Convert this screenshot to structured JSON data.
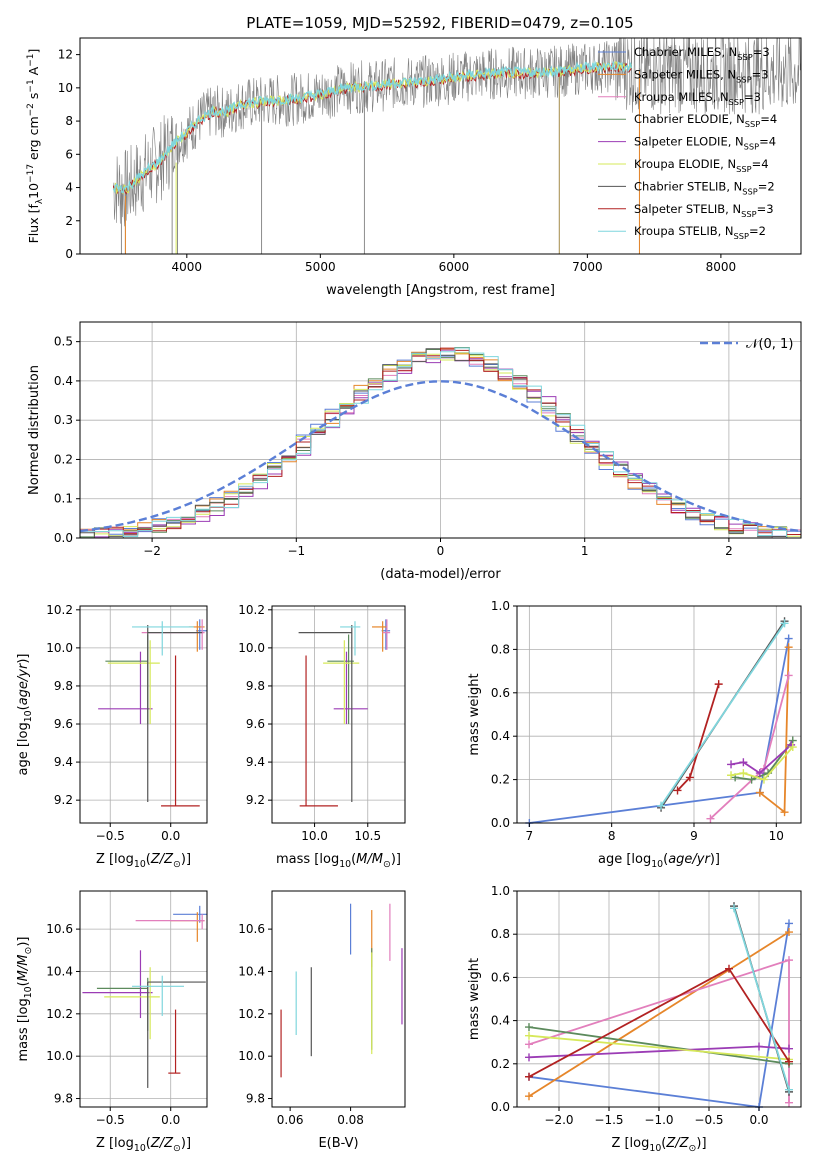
{
  "figure_title": "PLATE=1059, MJD=52592, FIBERID=0479, z=0.105",
  "colors": {
    "Chabrier MILES": "#5b7fd6",
    "Salpeter MILES": "#e6862a",
    "Kroupa MILES": "#e27fbc",
    "Chabrier ELODIE": "#5c8a5c",
    "Salpeter ELODIE": "#9b3cb5",
    "Kroupa ELODIE": "#d6e85a",
    "Chabrier STELIB": "#555555",
    "Salpeter STELIB": "#b22222",
    "Kroupa STELIB": "#7fd6dd",
    "observed": "#808080",
    "grid": "#b0b0b0"
  },
  "chart_data": [
    {
      "id": "spectrum",
      "type": "line",
      "xlabel": "wavelength [Angstrom, rest frame]",
      "ylabel": "Flux [f_λ10^-17 erg cm^-2 s^-1 A^-1]",
      "xlim": [
        3200,
        8600
      ],
      "ylim": [
        0,
        13
      ],
      "xticks": [
        4000,
        5000,
        6000,
        7000,
        8000
      ],
      "yticks": [
        0,
        2,
        4,
        6,
        8,
        10,
        12
      ],
      "grid": false,
      "legend_placement": "right",
      "legend": [
        "Chabrier MILES, N_SSP=3",
        "Salpeter MILES, N_SSP=3",
        "Kroupa MILES, N_SSP=3",
        "Chabrier ELODIE, N_SSP=4",
        "Salpeter ELODIE, N_SSP=4",
        "Kroupa ELODIE, N_SSP=4",
        "Chabrier STELIB, N_SSP=2",
        "Salpeter STELIB, N_SSP=3",
        "Kroupa STELIB, N_SSP=2"
      ],
      "model_curve": [
        [
          3450,
          4.0
        ],
        [
          3550,
          3.9
        ],
        [
          3700,
          5.0
        ],
        [
          3800,
          5.6
        ],
        [
          3900,
          6.6
        ],
        [
          4000,
          7.3
        ],
        [
          4100,
          8.1
        ],
        [
          4200,
          8.6
        ],
        [
          4300,
          8.5
        ],
        [
          4400,
          9.0
        ],
        [
          4600,
          9.2
        ],
        [
          4800,
          9.3
        ],
        [
          5000,
          9.6
        ],
        [
          5200,
          10.0
        ],
        [
          5400,
          10.1
        ],
        [
          5600,
          10.3
        ],
        [
          5800,
          10.4
        ],
        [
          6000,
          10.6
        ],
        [
          6200,
          10.8
        ],
        [
          6400,
          10.9
        ],
        [
          6600,
          10.9
        ],
        [
          6800,
          11.0
        ],
        [
          7000,
          11.2
        ],
        [
          7200,
          11.3
        ],
        [
          7330,
          11.2
        ]
      ],
      "observed_range": [
        3450,
        8600
      ]
    },
    {
      "id": "residuals",
      "type": "line",
      "xlabel": "(data-model)/error",
      "ylabel": "Normed distribution",
      "xlim": [
        -2.5,
        2.5
      ],
      "ylim": [
        0,
        0.55
      ],
      "xticks": [
        -2,
        -1,
        0,
        1,
        2
      ],
      "yticks": [
        0.0,
        0.1,
        0.2,
        0.3,
        0.4,
        0.5
      ],
      "grid": true,
      "legend_placement": "top-right",
      "legend": [
        "𝒩(0, 1)"
      ],
      "normal_curve": {
        "mean": 0,
        "sigma": 1
      },
      "histogram": {
        "bin_width": 0.1,
        "peak": 0.47,
        "center": 0.05,
        "sigma": 0.85
      }
    },
    {
      "id": "age_vs_Z",
      "type": "scatter",
      "xlabel": "Z [log10(Z/Z⊙)]",
      "ylabel": "age  [log10(age/yr)]",
      "xlim": [
        -0.75,
        0.3
      ],
      "ylim": [
        9.08,
        10.22
      ],
      "xticks": [
        -0.5,
        0.0
      ],
      "yticks": [
        9.2,
        9.4,
        9.6,
        9.8,
        10.0,
        10.2
      ],
      "grid": true,
      "points": [
        {
          "model": "Chabrier MILES",
          "x": 0.24,
          "y": 10.09,
          "xerr": [
            0.03,
            0.06
          ],
          "yerr": [
            0.1,
            0.06
          ]
        },
        {
          "model": "Salpeter MILES",
          "x": 0.22,
          "y": 10.11,
          "xerr": [
            0.07,
            0.06
          ],
          "yerr": [
            0.13,
            0.03
          ]
        },
        {
          "model": "Kroupa MILES",
          "x": 0.26,
          "y": 10.08,
          "xerr": [
            0.5,
            0.02
          ],
          "yerr": [
            0.09,
            0.07
          ]
        },
        {
          "model": "Chabrier ELODIE",
          "x": -0.19,
          "y": 9.93,
          "xerr": [
            0.35,
            0.0
          ],
          "yerr": [
            0.33,
            0.14
          ]
        },
        {
          "model": "Salpeter ELODIE",
          "x": -0.25,
          "y": 9.68,
          "xerr": [
            0.35,
            0.1
          ],
          "yerr": [
            0.08,
            0.3
          ]
        },
        {
          "model": "Kroupa ELODIE",
          "x": -0.17,
          "y": 9.92,
          "xerr": [
            0.35,
            0.08
          ],
          "yerr": [
            0.32,
            0.12
          ]
        },
        {
          "model": "Chabrier STELIB",
          "x": -0.19,
          "y": 10.08,
          "xerr": [
            0.0,
            0.45
          ],
          "yerr": [
            0.89,
            0.04
          ]
        },
        {
          "model": "Salpeter STELIB",
          "x": 0.04,
          "y": 9.17,
          "xerr": [
            0.12,
            0.2
          ],
          "yerr": [
            0.0,
            0.79
          ]
        },
        {
          "model": "Kroupa STELIB",
          "x": -0.07,
          "y": 10.11,
          "xerr": [
            0.25,
            0.26
          ],
          "yerr": [
            0.15,
            0.03
          ]
        }
      ]
    },
    {
      "id": "age_vs_mass",
      "type": "scatter",
      "xlabel": "mass [log10(M/M⊙)]",
      "ylabel": "",
      "xlim": [
        9.6,
        10.85
      ],
      "ylim": [
        9.08,
        10.22
      ],
      "xticks": [
        10.0,
        10.5
      ],
      "yticks": [
        9.2,
        9.4,
        9.6,
        9.8,
        10.0,
        10.2
      ],
      "grid": true,
      "points": [
        {
          "model": "Chabrier MILES",
          "x": 10.67,
          "y": 10.09,
          "xerr": [
            0.04,
            0.04
          ],
          "yerr": [
            0.1,
            0.06
          ]
        },
        {
          "model": "Salpeter MILES",
          "x": 10.64,
          "y": 10.11,
          "xerr": [
            0.1,
            0.04
          ],
          "yerr": [
            0.13,
            0.03
          ]
        },
        {
          "model": "Kroupa MILES",
          "x": 10.68,
          "y": 10.08,
          "xerr": [
            0.04,
            0.03
          ],
          "yerr": [
            0.09,
            0.07
          ]
        },
        {
          "model": "Chabrier ELODIE",
          "x": 10.32,
          "y": 9.93,
          "xerr": [
            0.2,
            0.05
          ],
          "yerr": [
            0.33,
            0.14
          ]
        },
        {
          "model": "Salpeter ELODIE",
          "x": 10.3,
          "y": 9.68,
          "xerr": [
            0.12,
            0.2
          ],
          "yerr": [
            0.08,
            0.3
          ]
        },
        {
          "model": "Kroupa ELODIE",
          "x": 10.28,
          "y": 9.92,
          "xerr": [
            0.2,
            0.14
          ],
          "yerr": [
            0.32,
            0.12
          ]
        },
        {
          "model": "Chabrier STELIB",
          "x": 10.35,
          "y": 10.08,
          "xerr": [
            0.5,
            0.0
          ],
          "yerr": [
            0.89,
            0.04
          ]
        },
        {
          "model": "Salpeter STELIB",
          "x": 9.92,
          "y": 9.17,
          "xerr": [
            0.06,
            0.3
          ],
          "yerr": [
            0.0,
            0.79
          ]
        },
        {
          "model": "Kroupa STELIB",
          "x": 10.38,
          "y": 10.11,
          "xerr": [
            0.14,
            0.05
          ],
          "yerr": [
            0.15,
            0.03
          ]
        }
      ]
    },
    {
      "id": "weight_vs_age",
      "type": "line",
      "xlabel": "age  [log10(age/yr)]",
      "ylabel": "mass weight",
      "xlim": [
        6.85,
        10.3
      ],
      "ylim": [
        0,
        1.0
      ],
      "xticks": [
        7,
        8,
        9,
        10
      ],
      "yticks": [
        0.0,
        0.2,
        0.4,
        0.6,
        0.8,
        1.0
      ],
      "grid": true,
      "series": [
        {
          "model": "Chabrier MILES",
          "points": [
            [
              7.0,
              0.0
            ],
            [
              9.8,
              0.14
            ],
            [
              10.15,
              0.85
            ]
          ]
        },
        {
          "model": "Salpeter MILES",
          "points": [
            [
              9.8,
              0.14
            ],
            [
              10.1,
              0.05
            ],
            [
              10.15,
              0.81
            ]
          ]
        },
        {
          "model": "Kroupa MILES",
          "points": [
            [
              9.2,
              0.02
            ],
            [
              9.85,
              0.25
            ],
            [
              10.15,
              0.68
            ]
          ]
        },
        {
          "model": "Chabrier ELODIE",
          "points": [
            [
              9.5,
              0.21
            ],
            [
              9.7,
              0.2
            ],
            [
              9.9,
              0.23
            ],
            [
              10.2,
              0.38
            ]
          ]
        },
        {
          "model": "Salpeter ELODIE",
          "points": [
            [
              9.45,
              0.27
            ],
            [
              9.6,
              0.28
            ],
            [
              9.8,
              0.23
            ],
            [
              10.18,
              0.36
            ]
          ]
        },
        {
          "model": "Kroupa ELODIE",
          "points": [
            [
              9.45,
              0.22
            ],
            [
              9.6,
              0.23
            ],
            [
              9.85,
              0.2
            ],
            [
              10.2,
              0.35
            ]
          ]
        },
        {
          "model": "Chabrier STELIB",
          "points": [
            [
              8.6,
              0.07
            ],
            [
              10.1,
              0.93
            ]
          ]
        },
        {
          "model": "Salpeter STELIB",
          "points": [
            [
              8.8,
              0.15
            ],
            [
              8.95,
              0.21
            ],
            [
              9.3,
              0.64
            ]
          ]
        },
        {
          "model": "Kroupa STELIB",
          "points": [
            [
              8.6,
              0.08
            ],
            [
              10.1,
              0.92
            ]
          ]
        }
      ]
    },
    {
      "id": "mass_vs_Z",
      "type": "scatter",
      "xlabel": "Z [log10(Z/Z⊙)]",
      "ylabel": "mass [log10(M/M⊙)]",
      "xlim": [
        -0.75,
        0.3
      ],
      "ylim": [
        9.76,
        10.78
      ],
      "xticks": [
        -0.5,
        0.0
      ],
      "yticks": [
        9.8,
        10.0,
        10.2,
        10.4,
        10.6
      ],
      "grid": true,
      "points": [
        {
          "model": "Chabrier MILES",
          "x": 0.24,
          "y": 10.67,
          "xerr": [
            0.22,
            0.06
          ],
          "yerr": [
            0.04,
            0.04
          ]
        },
        {
          "model": "Salpeter MILES",
          "x": 0.22,
          "y": 10.64,
          "xerr": [
            0.22,
            0.06
          ],
          "yerr": [
            0.1,
            0.04
          ]
        },
        {
          "model": "Kroupa MILES",
          "x": 0.26,
          "y": 10.64,
          "xerr": [
            0.55,
            0.02
          ],
          "yerr": [
            0.04,
            0.03
          ]
        },
        {
          "model": "Chabrier ELODIE",
          "x": -0.19,
          "y": 10.32,
          "xerr": [
            0.42,
            0.0
          ],
          "yerr": [
            0.2,
            0.05
          ]
        },
        {
          "model": "Salpeter ELODIE",
          "x": -0.25,
          "y": 10.3,
          "xerr": [
            0.48,
            0.1
          ],
          "yerr": [
            0.12,
            0.2
          ]
        },
        {
          "model": "Kroupa ELODIE",
          "x": -0.17,
          "y": 10.28,
          "xerr": [
            0.38,
            0.08
          ],
          "yerr": [
            0.2,
            0.14
          ]
        },
        {
          "model": "Chabrier STELIB",
          "x": -0.19,
          "y": 10.35,
          "xerr": [
            0.0,
            0.48
          ],
          "yerr": [
            0.5,
            0.0
          ]
        },
        {
          "model": "Salpeter STELIB",
          "x": 0.04,
          "y": 9.92,
          "xerr": [
            0.06,
            0.04
          ],
          "yerr": [
            0.0,
            0.3
          ]
        },
        {
          "model": "Kroupa STELIB",
          "x": -0.07,
          "y": 10.33,
          "xerr": [
            0.25,
            0.18
          ],
          "yerr": [
            0.14,
            0.05
          ]
        }
      ]
    },
    {
      "id": "mass_vs_EBV",
      "type": "scatter",
      "xlabel": "E(B-V)",
      "ylabel": "",
      "xlim": [
        0.054,
        0.098
      ],
      "ylim": [
        9.76,
        10.78
      ],
      "xticks": [
        0.06,
        0.08
      ],
      "yticks": [
        9.8,
        10.0,
        10.2,
        10.4,
        10.6
      ],
      "grid": false,
      "points": [
        {
          "model": "Chabrier MILES",
          "x": 0.08,
          "y": 10.6,
          "yerr": [
            0.12,
            0.12
          ]
        },
        {
          "model": "Salpeter MILES",
          "x": 0.087,
          "y": 10.52,
          "yerr": [
            0.1,
            0.17
          ]
        },
        {
          "model": "Kroupa MILES",
          "x": 0.093,
          "y": 10.58,
          "yerr": [
            0.13,
            0.14
          ]
        },
        {
          "model": "Chabrier ELODIE",
          "x": 0.087,
          "y": 10.27,
          "yerr": [
            0.24,
            0.24
          ]
        },
        {
          "model": "Salpeter ELODIE",
          "x": 0.097,
          "y": 10.33,
          "yerr": [
            0.18,
            0.18
          ]
        },
        {
          "model": "Kroupa ELODIE",
          "x": 0.087,
          "y": 10.25,
          "yerr": [
            0.24,
            0.24
          ]
        },
        {
          "model": "Chabrier STELIB",
          "x": 0.067,
          "y": 10.21,
          "yerr": [
            0.21,
            0.21
          ]
        },
        {
          "model": "Salpeter STELIB",
          "x": 0.057,
          "y": 10.06,
          "yerr": [
            0.16,
            0.16
          ]
        },
        {
          "model": "Kroupa STELIB",
          "x": 0.062,
          "y": 10.25,
          "yerr": [
            0.15,
            0.15
          ]
        }
      ]
    },
    {
      "id": "weight_vs_Z",
      "type": "line",
      "xlabel": "Z [log10(Z/Z⊙)]",
      "ylabel": "mass weight",
      "xlim": [
        -2.42,
        0.42
      ],
      "ylim": [
        0,
        1.0
      ],
      "xticks": [
        -2.0,
        -1.5,
        -1.0,
        -0.5,
        0.0
      ],
      "yticks": [
        0.0,
        0.2,
        0.4,
        0.6,
        0.8,
        1.0
      ],
      "grid": true,
      "series": [
        {
          "model": "Chabrier MILES",
          "points": [
            [
              -2.3,
              0.14
            ],
            [
              0.0,
              0.0
            ],
            [
              0.3,
              0.85
            ]
          ]
        },
        {
          "model": "Salpeter MILES",
          "points": [
            [
              -2.3,
              0.05
            ],
            [
              0.3,
              0.81
            ]
          ]
        },
        {
          "model": "Kroupa MILES",
          "points": [
            [
              -2.3,
              0.29
            ],
            [
              0.3,
              0.68
            ],
            [
              0.3,
              0.02
            ]
          ]
        },
        {
          "model": "Chabrier ELODIE",
          "points": [
            [
              -2.3,
              0.37
            ],
            [
              0.3,
              0.2
            ]
          ]
        },
        {
          "model": "Salpeter ELODIE",
          "points": [
            [
              -2.3,
              0.23
            ],
            [
              0.0,
              0.28
            ],
            [
              0.3,
              0.27
            ]
          ]
        },
        {
          "model": "Kroupa ELODIE",
          "points": [
            [
              -2.3,
              0.33
            ],
            [
              0.3,
              0.22
            ]
          ]
        },
        {
          "model": "Chabrier STELIB",
          "points": [
            [
              -0.25,
              0.93
            ],
            [
              0.3,
              0.07
            ]
          ]
        },
        {
          "model": "Salpeter STELIB",
          "points": [
            [
              -2.3,
              0.14
            ],
            [
              -0.3,
              0.64
            ],
            [
              0.3,
              0.21
            ]
          ]
        },
        {
          "model": "Kroupa STELIB",
          "points": [
            [
              -0.25,
              0.92
            ],
            [
              0.3,
              0.08
            ]
          ]
        }
      ]
    }
  ]
}
